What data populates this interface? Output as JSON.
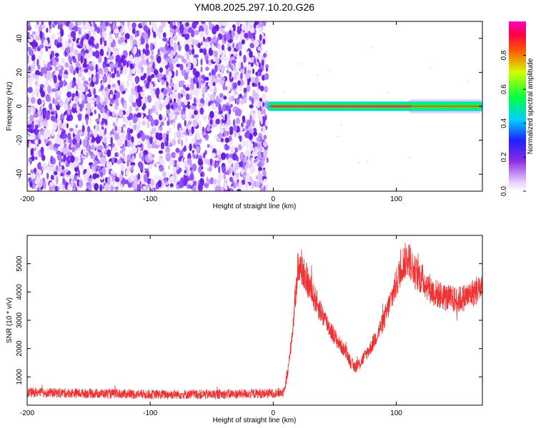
{
  "title": "YM08.2025.297.10.20.G26",
  "chart_data": [
    {
      "type": "heatmap",
      "xlabel": "Height of straight line (km)",
      "ylabel": "Frequency (Hz)",
      "xlim": [
        -200,
        170
      ],
      "ylim": [
        -50,
        50
      ],
      "xticks": [
        -200,
        -100,
        0,
        100
      ],
      "yticks": [
        -40,
        -20,
        0,
        20,
        40
      ],
      "grid": false,
      "colorbar": {
        "label": "Normalized spectral amplitude",
        "range": [
          0,
          1
        ],
        "ticks": [
          0.0,
          0.2,
          0.4,
          0.6,
          0.8
        ]
      },
      "regions": [
        {
          "x_range": [
            -200,
            -5
          ],
          "freq_range": [
            -50,
            50
          ],
          "amplitude_range": [
            0.05,
            0.25
          ]
        },
        {
          "x_range": [
            -5,
            170
          ],
          "freq_range": [
            -1.5,
            1.5
          ],
          "amplitude_range": [
            0.6,
            1.0
          ]
        }
      ]
    },
    {
      "type": "line",
      "xlabel": "Height of straight line (km)",
      "ylabel": "SNR (10 * v/v)",
      "xlim": [
        -200,
        170
      ],
      "ylim": [
        0,
        6000
      ],
      "xticks": [
        -200,
        -100,
        0,
        100
      ],
      "yticks": [
        1000,
        2000,
        3000,
        4000,
        5000
      ],
      "grid": false,
      "color": "#f03232",
      "series": [
        {
          "x": [
            -200,
            -150,
            -100,
            -50,
            0,
            8,
            12,
            16,
            20,
            25,
            30,
            40,
            50,
            60,
            65,
            70,
            80,
            90,
            100,
            105,
            110,
            115,
            120,
            130,
            140,
            150,
            160,
            170
          ],
          "y": [
            450,
            420,
            380,
            380,
            420,
            450,
            1200,
            2800,
            4900,
            4700,
            4100,
            3200,
            2400,
            1800,
            1350,
            1450,
            2100,
            3000,
            4300,
            5000,
            5200,
            4700,
            4500,
            4000,
            3800,
            3700,
            3900,
            4200
          ]
        }
      ]
    }
  ]
}
